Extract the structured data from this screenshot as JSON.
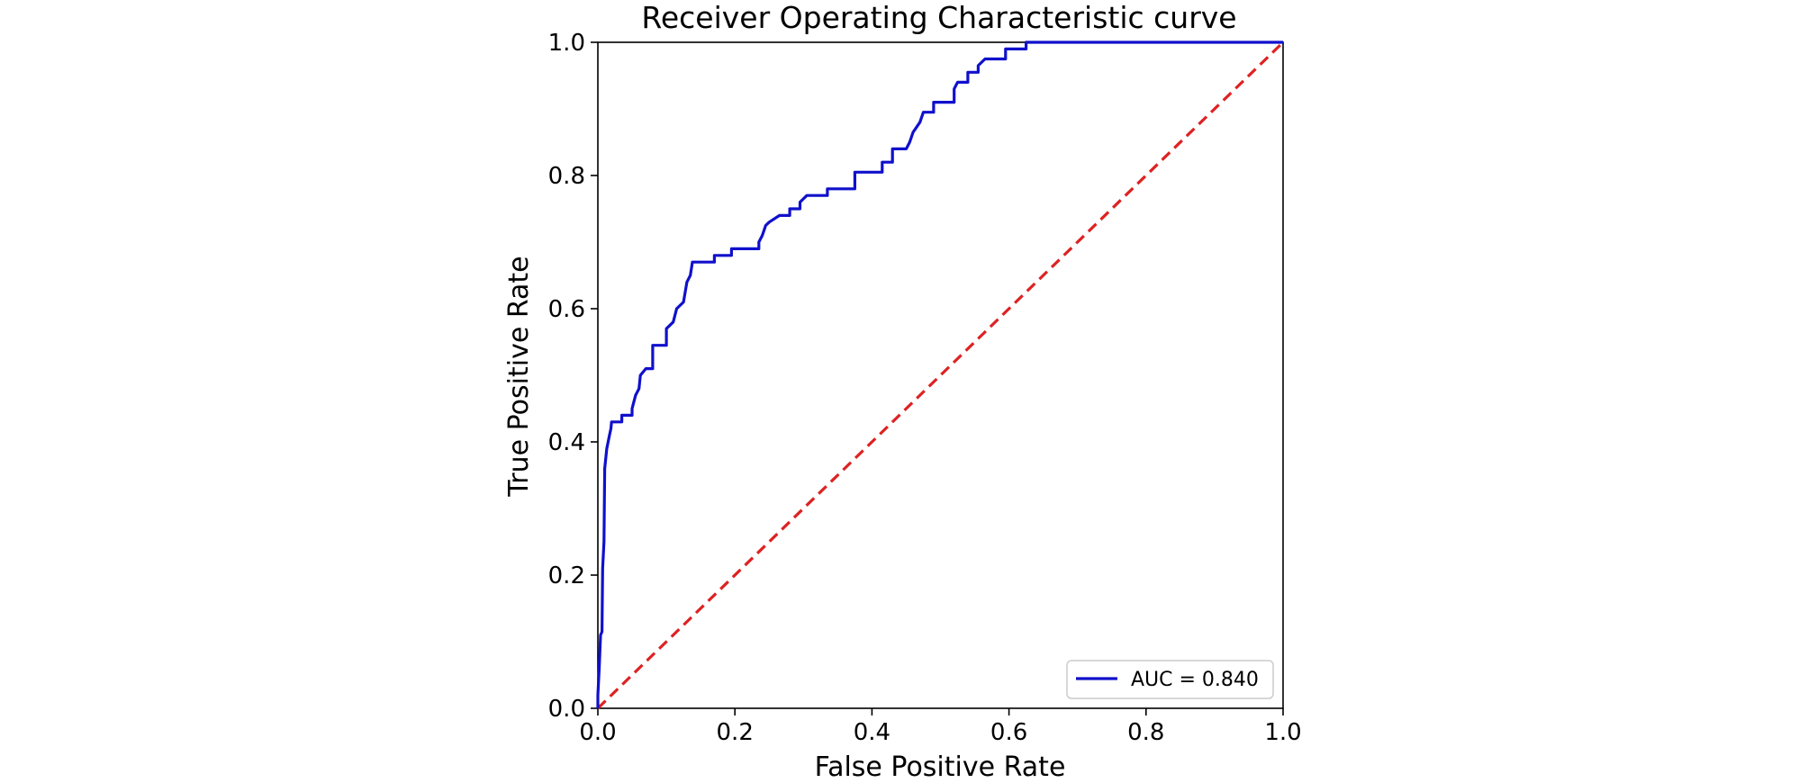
{
  "chart_data": {
    "type": "line",
    "title": "Receiver Operating Characteristic curve",
    "xlabel": "False Positive Rate",
    "ylabel": "True Positive Rate",
    "xlim": [
      0.0,
      1.0
    ],
    "ylim": [
      0.0,
      1.0
    ],
    "x_ticks": [
      "0.0",
      "0.2",
      "0.4",
      "0.6",
      "0.8",
      "1.0"
    ],
    "y_ticks": [
      "0.0",
      "0.2",
      "0.4",
      "0.6",
      "0.8",
      "1.0"
    ],
    "grid": false,
    "legend": {
      "position": "bottom-right",
      "entries": [
        "AUC = 0.840"
      ]
    },
    "series": [
      {
        "name": "AUC = 0.840",
        "style": "solid",
        "color": "#1010cc",
        "points": [
          [
            0.0,
            0.0
          ],
          [
            0.0,
            0.02
          ],
          [
            0.002,
            0.06
          ],
          [
            0.004,
            0.11
          ],
          [
            0.006,
            0.115
          ],
          [
            0.007,
            0.21
          ],
          [
            0.009,
            0.25
          ],
          [
            0.01,
            0.36
          ],
          [
            0.013,
            0.39
          ],
          [
            0.015,
            0.4
          ],
          [
            0.017,
            0.41
          ],
          [
            0.019,
            0.42
          ],
          [
            0.02,
            0.43
          ],
          [
            0.035,
            0.43
          ],
          [
            0.035,
            0.44
          ],
          [
            0.05,
            0.44
          ],
          [
            0.05,
            0.45
          ],
          [
            0.055,
            0.47
          ],
          [
            0.06,
            0.48
          ],
          [
            0.062,
            0.5
          ],
          [
            0.07,
            0.51
          ],
          [
            0.08,
            0.51
          ],
          [
            0.08,
            0.545
          ],
          [
            0.1,
            0.545
          ],
          [
            0.1,
            0.57
          ],
          [
            0.11,
            0.58
          ],
          [
            0.115,
            0.6
          ],
          [
            0.125,
            0.61
          ],
          [
            0.13,
            0.64
          ],
          [
            0.135,
            0.65
          ],
          [
            0.138,
            0.67
          ],
          [
            0.17,
            0.67
          ],
          [
            0.17,
            0.68
          ],
          [
            0.195,
            0.68
          ],
          [
            0.195,
            0.69
          ],
          [
            0.235,
            0.69
          ],
          [
            0.235,
            0.7
          ],
          [
            0.24,
            0.71
          ],
          [
            0.245,
            0.725
          ],
          [
            0.25,
            0.73
          ],
          [
            0.265,
            0.74
          ],
          [
            0.28,
            0.74
          ],
          [
            0.28,
            0.75
          ],
          [
            0.295,
            0.75
          ],
          [
            0.295,
            0.76
          ],
          [
            0.305,
            0.77
          ],
          [
            0.335,
            0.77
          ],
          [
            0.335,
            0.78
          ],
          [
            0.375,
            0.78
          ],
          [
            0.375,
            0.805
          ],
          [
            0.415,
            0.805
          ],
          [
            0.415,
            0.82
          ],
          [
            0.43,
            0.82
          ],
          [
            0.43,
            0.84
          ],
          [
            0.45,
            0.84
          ],
          [
            0.455,
            0.85
          ],
          [
            0.46,
            0.865
          ],
          [
            0.47,
            0.88
          ],
          [
            0.475,
            0.895
          ],
          [
            0.49,
            0.895
          ],
          [
            0.49,
            0.91
          ],
          [
            0.52,
            0.91
          ],
          [
            0.52,
            0.93
          ],
          [
            0.525,
            0.94
          ],
          [
            0.54,
            0.94
          ],
          [
            0.54,
            0.955
          ],
          [
            0.555,
            0.955
          ],
          [
            0.555,
            0.965
          ],
          [
            0.565,
            0.975
          ],
          [
            0.595,
            0.975
          ],
          [
            0.595,
            0.99
          ],
          [
            0.625,
            0.99
          ],
          [
            0.625,
            1.0
          ],
          [
            1.0,
            1.0
          ]
        ]
      },
      {
        "name": "",
        "style": "dashed",
        "color": "#dd2222",
        "points": [
          [
            0.0,
            0.0
          ],
          [
            1.0,
            1.0
          ]
        ]
      }
    ]
  }
}
